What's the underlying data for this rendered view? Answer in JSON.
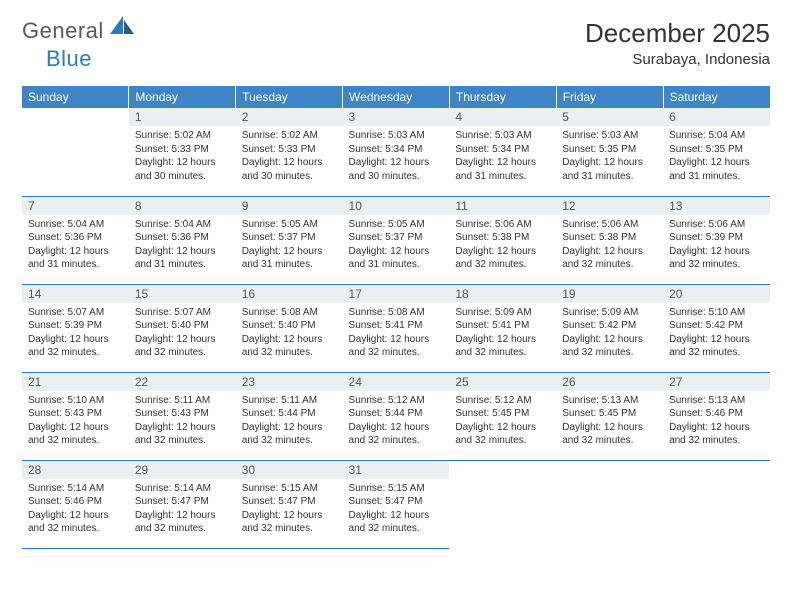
{
  "brand": {
    "text1": "General",
    "text2": "Blue"
  },
  "title": "December 2025",
  "location": "Surabaya, Indonesia",
  "colors": {
    "header_bg": "#3d85c6",
    "header_text": "#ffffff",
    "daynum_bg": "#eceff1",
    "border": "#2b7bbf",
    "brand_gray": "#5a5a5a",
    "brand_blue": "#2b7bbf"
  },
  "weekdays": [
    "Sunday",
    "Monday",
    "Tuesday",
    "Wednesday",
    "Thursday",
    "Friday",
    "Saturday"
  ],
  "cells": [
    null,
    {
      "n": "1",
      "sr": "5:02 AM",
      "ss": "5:33 PM",
      "dl": "12 hours and 30 minutes."
    },
    {
      "n": "2",
      "sr": "5:02 AM",
      "ss": "5:33 PM",
      "dl": "12 hours and 30 minutes."
    },
    {
      "n": "3",
      "sr": "5:03 AM",
      "ss": "5:34 PM",
      "dl": "12 hours and 30 minutes."
    },
    {
      "n": "4",
      "sr": "5:03 AM",
      "ss": "5:34 PM",
      "dl": "12 hours and 31 minutes."
    },
    {
      "n": "5",
      "sr": "5:03 AM",
      "ss": "5:35 PM",
      "dl": "12 hours and 31 minutes."
    },
    {
      "n": "6",
      "sr": "5:04 AM",
      "ss": "5:35 PM",
      "dl": "12 hours and 31 minutes."
    },
    {
      "n": "7",
      "sr": "5:04 AM",
      "ss": "5:36 PM",
      "dl": "12 hours and 31 minutes."
    },
    {
      "n": "8",
      "sr": "5:04 AM",
      "ss": "5:36 PM",
      "dl": "12 hours and 31 minutes."
    },
    {
      "n": "9",
      "sr": "5:05 AM",
      "ss": "5:37 PM",
      "dl": "12 hours and 31 minutes."
    },
    {
      "n": "10",
      "sr": "5:05 AM",
      "ss": "5:37 PM",
      "dl": "12 hours and 31 minutes."
    },
    {
      "n": "11",
      "sr": "5:06 AM",
      "ss": "5:38 PM",
      "dl": "12 hours and 32 minutes."
    },
    {
      "n": "12",
      "sr": "5:06 AM",
      "ss": "5:38 PM",
      "dl": "12 hours and 32 minutes."
    },
    {
      "n": "13",
      "sr": "5:06 AM",
      "ss": "5:39 PM",
      "dl": "12 hours and 32 minutes."
    },
    {
      "n": "14",
      "sr": "5:07 AM",
      "ss": "5:39 PM",
      "dl": "12 hours and 32 minutes."
    },
    {
      "n": "15",
      "sr": "5:07 AM",
      "ss": "5:40 PM",
      "dl": "12 hours and 32 minutes."
    },
    {
      "n": "16",
      "sr": "5:08 AM",
      "ss": "5:40 PM",
      "dl": "12 hours and 32 minutes."
    },
    {
      "n": "17",
      "sr": "5:08 AM",
      "ss": "5:41 PM",
      "dl": "12 hours and 32 minutes."
    },
    {
      "n": "18",
      "sr": "5:09 AM",
      "ss": "5:41 PM",
      "dl": "12 hours and 32 minutes."
    },
    {
      "n": "19",
      "sr": "5:09 AM",
      "ss": "5:42 PM",
      "dl": "12 hours and 32 minutes."
    },
    {
      "n": "20",
      "sr": "5:10 AM",
      "ss": "5:42 PM",
      "dl": "12 hours and 32 minutes."
    },
    {
      "n": "21",
      "sr": "5:10 AM",
      "ss": "5:43 PM",
      "dl": "12 hours and 32 minutes."
    },
    {
      "n": "22",
      "sr": "5:11 AM",
      "ss": "5:43 PM",
      "dl": "12 hours and 32 minutes."
    },
    {
      "n": "23",
      "sr": "5:11 AM",
      "ss": "5:44 PM",
      "dl": "12 hours and 32 minutes."
    },
    {
      "n": "24",
      "sr": "5:12 AM",
      "ss": "5:44 PM",
      "dl": "12 hours and 32 minutes."
    },
    {
      "n": "25",
      "sr": "5:12 AM",
      "ss": "5:45 PM",
      "dl": "12 hours and 32 minutes."
    },
    {
      "n": "26",
      "sr": "5:13 AM",
      "ss": "5:45 PM",
      "dl": "12 hours and 32 minutes."
    },
    {
      "n": "27",
      "sr": "5:13 AM",
      "ss": "5:46 PM",
      "dl": "12 hours and 32 minutes."
    },
    {
      "n": "28",
      "sr": "5:14 AM",
      "ss": "5:46 PM",
      "dl": "12 hours and 32 minutes."
    },
    {
      "n": "29",
      "sr": "5:14 AM",
      "ss": "5:47 PM",
      "dl": "12 hours and 32 minutes."
    },
    {
      "n": "30",
      "sr": "5:15 AM",
      "ss": "5:47 PM",
      "dl": "12 hours and 32 minutes."
    },
    {
      "n": "31",
      "sr": "5:15 AM",
      "ss": "5:47 PM",
      "dl": "12 hours and 32 minutes."
    },
    null,
    null,
    null
  ],
  "labels": {
    "sunrise": "Sunrise:",
    "sunset": "Sunset:",
    "daylight": "Daylight:"
  }
}
